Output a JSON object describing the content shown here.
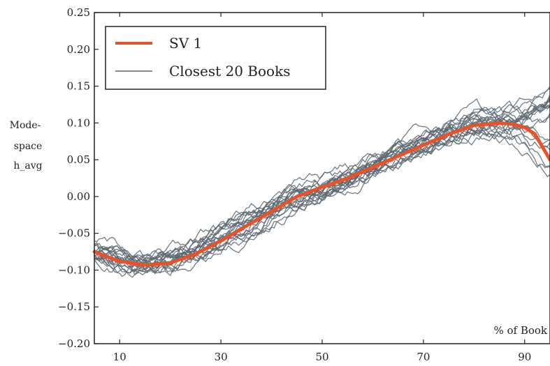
{
  "chart_data": {
    "type": "line",
    "title": "",
    "xlabel": "% of Book",
    "ylabel_lines": [
      "Mode-",
      "space",
      "h_avg"
    ],
    "xlim": [
      5,
      95
    ],
    "ylim": [
      -0.2,
      0.25
    ],
    "x_ticks": [
      10,
      30,
      50,
      70,
      90
    ],
    "x_tick_labels": [
      "10",
      "30",
      "50",
      "70",
      "90"
    ],
    "y_ticks": [
      -0.2,
      -0.15,
      -0.1,
      -0.05,
      0.0,
      0.05,
      0.1,
      0.15,
      0.2,
      0.25
    ],
    "y_tick_labels": [
      "−0.20",
      "−0.15",
      "−0.10",
      "−0.05",
      "0.00",
      "0.05",
      "0.10",
      "0.15",
      "0.20",
      "0.25"
    ],
    "grid": false,
    "legend_position": "top-left",
    "legend": [
      {
        "label": "SV 1",
        "color": "#e8522a"
      },
      {
        "label": "Closest 20 Books",
        "color": "#5a6670"
      }
    ],
    "series": [
      {
        "name": "SV 1",
        "color": "#e8522a",
        "x": [
          5,
          10,
          15,
          20,
          25,
          30,
          35,
          40,
          45,
          50,
          55,
          60,
          65,
          70,
          75,
          80,
          85,
          88,
          90,
          92,
          95
        ],
        "y": [
          -0.075,
          -0.088,
          -0.093,
          -0.09,
          -0.078,
          -0.06,
          -0.04,
          -0.02,
          0.0,
          0.013,
          0.025,
          0.04,
          0.055,
          0.07,
          0.085,
          0.097,
          0.1,
          0.098,
          0.094,
          0.085,
          0.05
        ]
      }
    ],
    "bundle": {
      "name": "Closest 20 Books",
      "color": "#5a6670",
      "count": 20,
      "base_x": [
        5,
        10,
        15,
        20,
        25,
        30,
        35,
        40,
        45,
        50,
        55,
        60,
        65,
        70,
        75,
        80,
        85,
        88,
        90,
        92,
        95
      ],
      "base_y": [
        -0.075,
        -0.088,
        -0.093,
        -0.09,
        -0.078,
        -0.06,
        -0.04,
        -0.02,
        0.0,
        0.013,
        0.025,
        0.04,
        0.055,
        0.07,
        0.085,
        0.097,
        0.1,
        0.098,
        0.094,
        0.085,
        0.05
      ],
      "end_spread": [
        0.14,
        0.12,
        0.1,
        0.09,
        0.12,
        0.035,
        0.15,
        0.13,
        0.04,
        0.11,
        0.08,
        0.13,
        0.12,
        0.07,
        0.1,
        0.14,
        0.05,
        0.09,
        0.11,
        0.13
      ]
    }
  }
}
